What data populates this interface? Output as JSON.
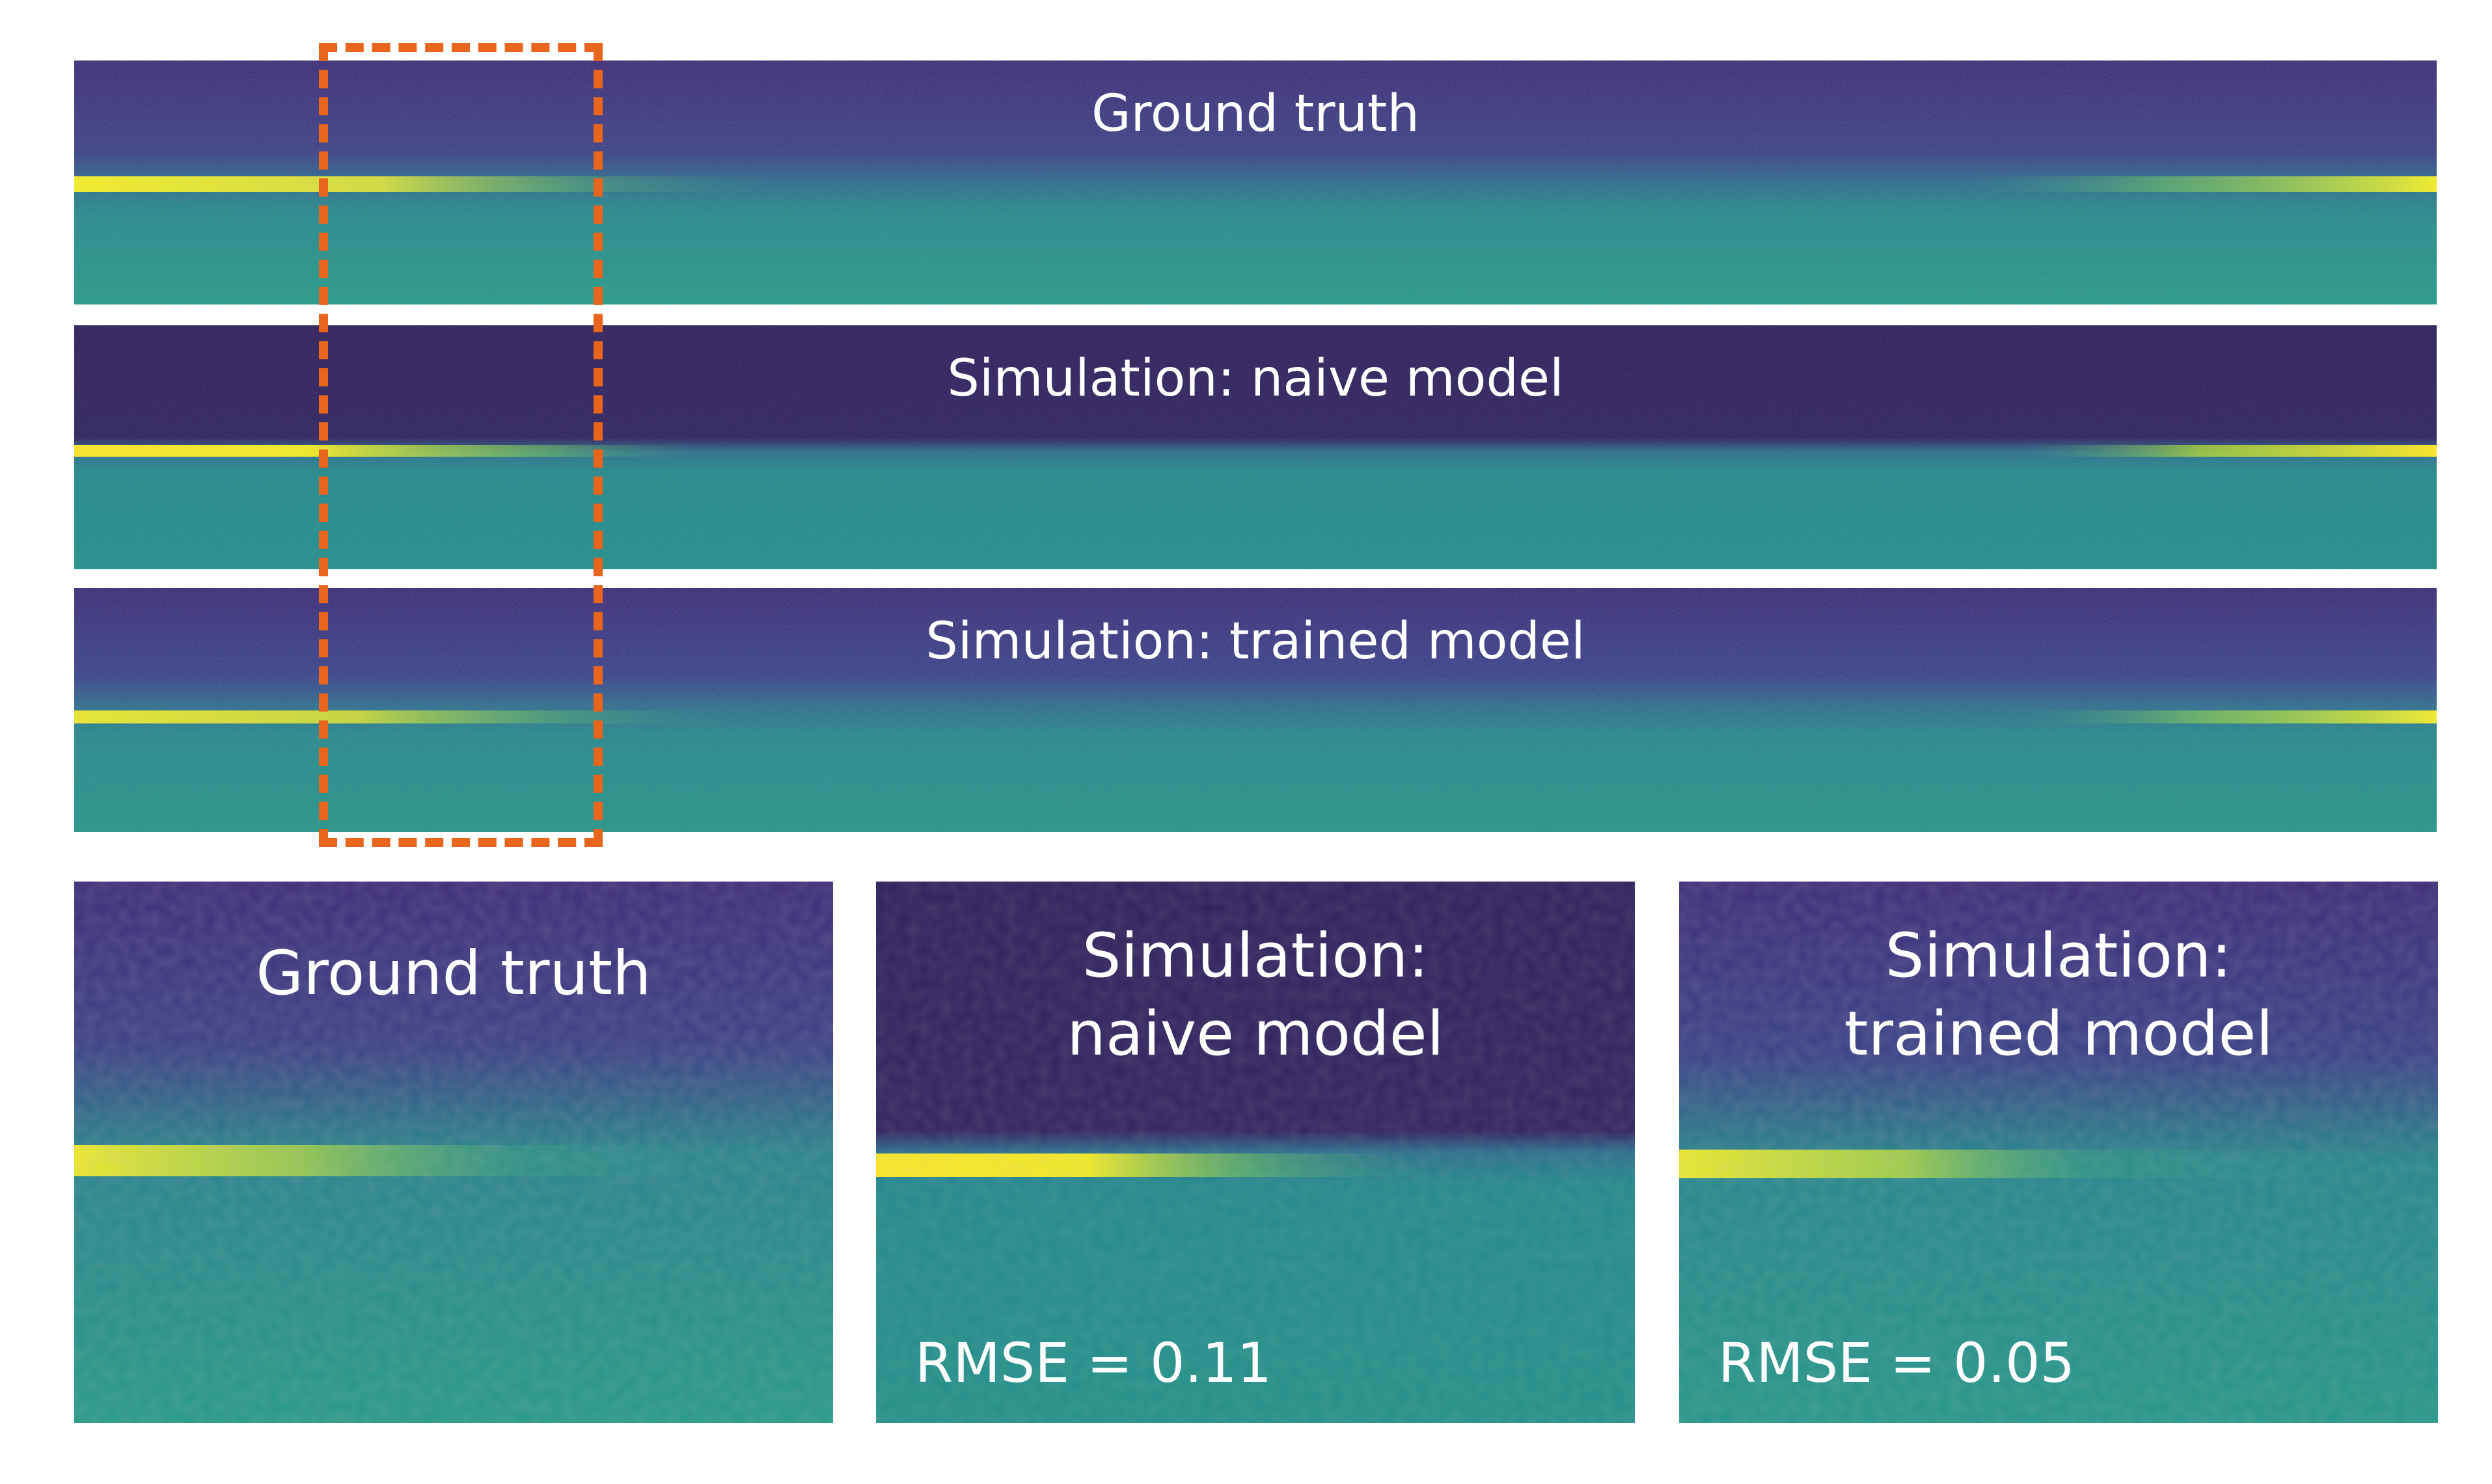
{
  "strips": {
    "ground_truth": {
      "label": "Ground truth"
    },
    "naive": {
      "label": "Simulation: naive model"
    },
    "trained": {
      "label": "Simulation: trained model"
    }
  },
  "zooms": {
    "ground_truth": {
      "label": "Ground truth"
    },
    "naive": {
      "label": "Simulation:\nnaive model",
      "rmse": "RMSE = 0.11"
    },
    "trained": {
      "label": "Simulation:\ntrained model",
      "rmse": "RMSE = 0.05"
    }
  },
  "colors": {
    "top_region": "#3b2a78",
    "top_region_dark": "#2e1f5c",
    "lower_region": "#21908c",
    "bright_line": "#f5f023",
    "roi_box": "#e8651e",
    "text": "#ffffff"
  }
}
